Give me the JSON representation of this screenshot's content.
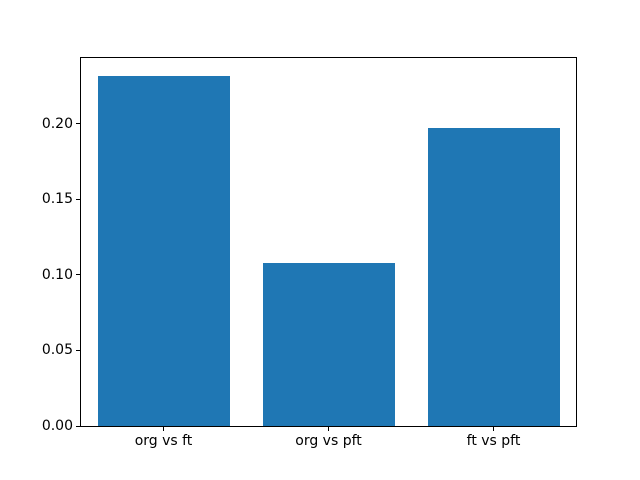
{
  "chart_data": {
    "type": "bar",
    "categories": [
      "org vs ft",
      "org vs pft",
      "ft vs pft"
    ],
    "values": [
      0.232,
      0.108,
      0.197
    ],
    "yticks": [
      0.0,
      0.05,
      0.1,
      0.15,
      0.2
    ],
    "ytick_labels": [
      "0.00",
      "0.05",
      "0.10",
      "0.15",
      "0.20"
    ],
    "ylim": [
      0,
      0.2436
    ],
    "bar_width_ratio": 0.8,
    "bar_color": "#1f77b4",
    "spine_color": "#000000",
    "text_color": "#000000",
    "background_color": "#ffffff",
    "grid": false,
    "legend": false
  }
}
